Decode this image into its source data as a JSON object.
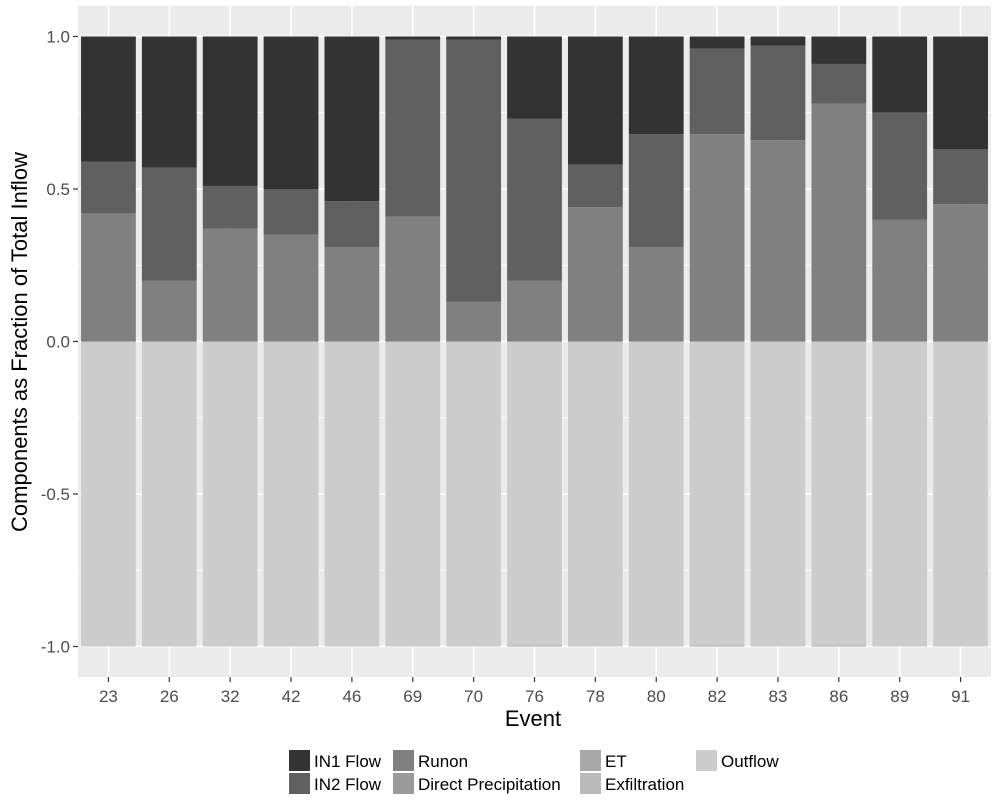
{
  "chart_data": {
    "type": "bar",
    "stacked": true,
    "xlabel": "Event",
    "ylabel": "Components as Fraction of Total Inflow",
    "ylim": [
      -1.1,
      1.1
    ],
    "yticks": [
      -1.0,
      -0.5,
      0.0,
      0.5,
      1.0
    ],
    "ytick_labels": [
      "-1.0",
      "-0.5",
      "0.0",
      "0.5",
      "1.0"
    ],
    "grid": true,
    "legend_position": "bottom",
    "categories": [
      "23",
      "26",
      "32",
      "42",
      "46",
      "69",
      "70",
      "76",
      "78",
      "80",
      "82",
      "83",
      "86",
      "89",
      "91"
    ],
    "series": [
      {
        "name": "Runon",
        "color": "#808080",
        "values": [
          0.42,
          0.2,
          0.37,
          0.35,
          0.31,
          0.41,
          0.13,
          0.2,
          0.44,
          0.31,
          0.68,
          0.66,
          0.78,
          0.4,
          0.45
        ]
      },
      {
        "name": "IN2 Flow",
        "color": "#606060",
        "values": [
          0.17,
          0.37,
          0.14,
          0.15,
          0.15,
          0.58,
          0.86,
          0.53,
          0.14,
          0.37,
          0.28,
          0.31,
          0.13,
          0.35,
          0.18
        ]
      },
      {
        "name": "IN1 Flow",
        "color": "#333333",
        "values": [
          0.41,
          0.43,
          0.49,
          0.5,
          0.54,
          0.01,
          0.01,
          0.27,
          0.42,
          0.32,
          0.04,
          0.03,
          0.09,
          0.25,
          0.37
        ]
      },
      {
        "name": "Outflow",
        "color": "#cccccc",
        "values": [
          -1.0,
          -1.0,
          -1.0,
          -1.0,
          -1.0,
          -1.0,
          -1.0,
          -0.997,
          -1.0,
          -1.0,
          -0.997,
          -1.0,
          -0.997,
          -1.0,
          -1.0
        ]
      },
      {
        "name": "Exfiltration",
        "color": "#bababa",
        "values": [
          0,
          0,
          0,
          0,
          0,
          0,
          0,
          0,
          0,
          0,
          0,
          0,
          0,
          0,
          0
        ]
      },
      {
        "name": "ET",
        "color": "#a8a8a8",
        "values": [
          0,
          0,
          0,
          0,
          0,
          0,
          0,
          -0.003,
          0,
          0,
          -0.003,
          0,
          -0.003,
          0,
          0
        ]
      },
      {
        "name": "Direct Precipitation",
        "color": "#9a9a9a",
        "values": [
          0,
          0,
          0,
          0,
          0,
          0,
          0,
          0,
          0,
          0,
          0,
          0,
          0,
          0,
          0
        ]
      }
    ],
    "legend": [
      {
        "name": "IN1 Flow",
        "color": "#333333"
      },
      {
        "name": "IN2 Flow",
        "color": "#606060"
      },
      {
        "name": "Runon",
        "color": "#808080"
      },
      {
        "name": "Direct Precipitation",
        "color": "#9a9a9a"
      },
      {
        "name": "ET",
        "color": "#a8a8a8"
      },
      {
        "name": "Exfiltration",
        "color": "#bababa"
      },
      {
        "name": "Outflow",
        "color": "#cccccc"
      }
    ],
    "panel_background": "#ebebeb",
    "gridline_color": "#ffffff"
  }
}
